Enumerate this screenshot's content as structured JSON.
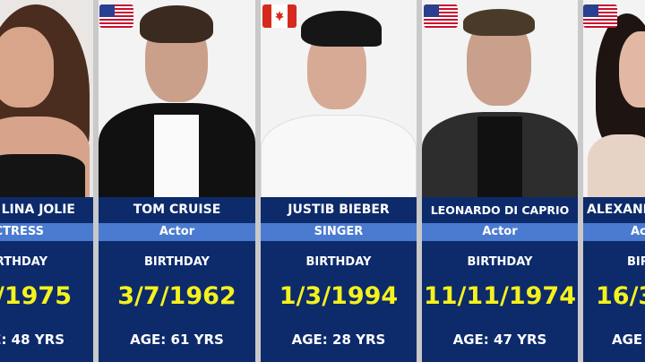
{
  "cards": [
    {
      "name": "LINA JOLIE",
      "role": "CTRESS",
      "birthday_label": "RTHDAY",
      "date": "/1975",
      "age": "E:  48 YRS",
      "flag": null
    },
    {
      "name": "TOM CRUISE",
      "role": "Actor",
      "birthday_label": "BIRTHDAY",
      "date": "3/7/1962",
      "age": "AGE:  61 YRS",
      "flag": "us-flag-icon"
    },
    {
      "name": "JUSTIB BIEBER",
      "role": "SINGER",
      "birthday_label": "BIRTHDAY",
      "date": "1/3/1994",
      "age": "AGE:  28 YRS",
      "flag": "canada-flag-icon"
    },
    {
      "name": "LEONARDO DI CAPRIO",
      "role": "Actor",
      "birthday_label": "BIRTHDAY",
      "date": "11/11/1974",
      "age": "AGE:  47 YRS",
      "flag": "us-flag-icon"
    },
    {
      "name": "ALEXAND",
      "role": "Ac",
      "birthday_label": "BIR",
      "date": "16/3",
      "age": "AGE",
      "flag": "us-flag-icon"
    }
  ],
  "colors": {
    "card_bg": "#0d2a6b",
    "role_band": "#4a7bd0",
    "date": "#f5f21c",
    "gap": "#c9c9c9"
  }
}
